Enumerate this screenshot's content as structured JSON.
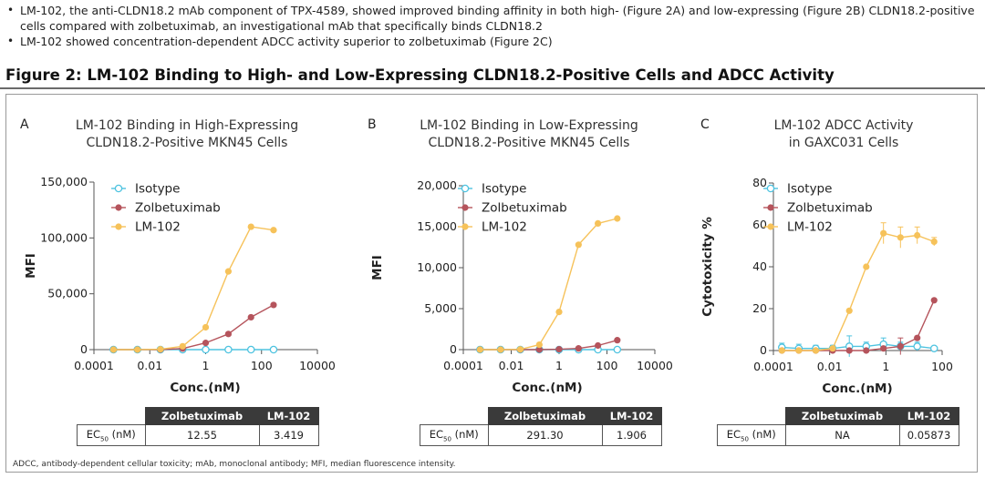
{
  "bullets": [
    "LM-102, the anti-CLDN18.2 mAb component of TPX-4589, showed improved binding affinity in both high- (Figure 2A) and low-expressing (Figure 2B) CLDN18.2-positive cells compared with zolbetuximab, an investigational mAb that specifically binds CLDN18.2",
    "LM-102 showed concentration-dependent ADCC activity superior to zolbetuximab (Figure 2C)"
  ],
  "figure_title": "Figure 2: LM-102 Binding to High- and Low-Expressing CLDN18.2-Positive Cells and ADCC Activity",
  "footnote": "ADCC, antibody-dependent cellular toxicity; mAb, monoclonal antibody; MFI, median fluorescence intensity.",
  "colors": {
    "Isotype": "#4ec3e0",
    "Zolbetuximab": "#b5545c",
    "LM-102": "#f6c25a"
  },
  "panels": [
    {
      "letter": "A",
      "title_line1": "LM-102 Binding in High-Expressing",
      "title_line2": "CLDN18.2-Positive MKN45 Cells",
      "table": {
        "col1": "Zolbetuximab",
        "col2": "LM-102",
        "row_label": "EC",
        "row_sub": "50",
        "row_unit": " (nM)",
        "v1": "12.55",
        "v2": "3.419"
      }
    },
    {
      "letter": "B",
      "title_line1": "LM-102 Binding in Low-Expressing",
      "title_line2": "CLDN18.2-Positive MKN45 Cells",
      "table": {
        "col1": "Zolbetuximab",
        "col2": "LM-102",
        "row_label": "EC",
        "row_sub": "50",
        "row_unit": " (nM)",
        "v1": "291.30",
        "v2": "1.906"
      }
    },
    {
      "letter": "C",
      "title_line1": "LM-102 ADCC Activity",
      "title_line2": "in GAXC031 Cells",
      "table": {
        "col1": "Zolbetuximab",
        "col2": "LM-102",
        "row_label": "EC",
        "row_sub": "50",
        "row_unit": " (nM)",
        "v1": "NA",
        "v2": "0.05873"
      }
    }
  ],
  "chart_data": [
    {
      "type": "scatter",
      "xlabel": "Conc.(nM)",
      "ylabel": "MFI",
      "xscale": "log",
      "xlim": [
        0.0001,
        10000
      ],
      "ylim": [
        0,
        150000
      ],
      "x_ticks": [
        "0.0001",
        "0.01",
        "1",
        "100",
        "10000"
      ],
      "y_ticks": [
        "0",
        "50,000",
        "100,000",
        "150,000"
      ],
      "y_tick_values": [
        0,
        50000,
        100000,
        150000
      ],
      "legend_position": "top-left",
      "series": [
        {
          "name": "Isotype",
          "x": [
            0.0005,
            0.0036,
            0.024,
            0.15,
            1.0,
            6.5,
            42,
            270
          ],
          "y": [
            0,
            0,
            0,
            0,
            0,
            0,
            0,
            0
          ]
        },
        {
          "name": "Zolbetuximab",
          "x": [
            0.0005,
            0.0036,
            0.024,
            0.15,
            1.0,
            6.5,
            42,
            270
          ],
          "y": [
            0,
            0,
            0,
            1000,
            6000,
            14000,
            29000,
            40000
          ]
        },
        {
          "name": "LM-102",
          "x": [
            0.0005,
            0.0036,
            0.024,
            0.15,
            1.0,
            6.5,
            42,
            270
          ],
          "y": [
            0,
            0,
            300,
            3000,
            20000,
            70000,
            110000,
            107000
          ]
        }
      ]
    },
    {
      "type": "scatter",
      "xlabel": "Conc.(nM)",
      "ylabel": "MFI",
      "xscale": "log",
      "xlim": [
        0.0001,
        10000
      ],
      "ylim": [
        0,
        20000
      ],
      "x_ticks": [
        "0.0001",
        "0.01",
        "1",
        "100",
        "10000"
      ],
      "y_ticks": [
        "0",
        "5,000",
        "10,000",
        "15,000",
        "20,000"
      ],
      "y_tick_values": [
        0,
        5000,
        10000,
        15000,
        20000
      ],
      "legend_position": "top-left",
      "series": [
        {
          "name": "Isotype",
          "x": [
            0.0005,
            0.0036,
            0.024,
            0.15,
            1.0,
            6.5,
            42,
            270
          ],
          "y": [
            0,
            0,
            0,
            0,
            0,
            0,
            0,
            0
          ]
        },
        {
          "name": "Zolbetuximab",
          "x": [
            0.0005,
            0.0036,
            0.024,
            0.15,
            1.0,
            6.5,
            42,
            270
          ],
          "y": [
            0,
            0,
            0,
            0,
            50,
            150,
            500,
            1150
          ]
        },
        {
          "name": "LM-102",
          "x": [
            0.0005,
            0.0036,
            0.024,
            0.15,
            1.0,
            6.5,
            42,
            270
          ],
          "y": [
            0,
            0,
            30,
            600,
            4600,
            12800,
            15400,
            16000
          ]
        }
      ]
    },
    {
      "type": "scatter",
      "xlabel": "Conc.(nM)",
      "ylabel": "Cytotoxicity %",
      "xscale": "log",
      "xlim": [
        0.0001,
        100
      ],
      "ylim": [
        0,
        80
      ],
      "x_ticks": [
        "0.0001",
        "0.01",
        "1",
        "100"
      ],
      "y_ticks": [
        "0",
        "20",
        "40",
        "60",
        "80"
      ],
      "y_tick_values": [
        0,
        20,
        40,
        60,
        80
      ],
      "legend_position": "top-left",
      "series": [
        {
          "name": "Isotype",
          "x": [
            0.0002,
            0.0008,
            0.0032,
            0.0128,
            0.05,
            0.2,
            0.82,
            3.3,
            13,
            52
          ],
          "y": [
            1.5,
            1,
            1,
            1,
            2,
            2,
            3,
            2,
            2,
            1
          ],
          "err": [
            2,
            2,
            1.5,
            1.5,
            5,
            2,
            3,
            2,
            2,
            1
          ]
        },
        {
          "name": "Zolbetuximab",
          "x": [
            0.0002,
            0.0008,
            0.0032,
            0.0128,
            0.05,
            0.2,
            0.82,
            3.3,
            13,
            52
          ],
          "y": [
            0,
            0,
            0,
            0,
            0,
            0,
            1,
            2,
            6,
            24
          ],
          "err": [
            0,
            0,
            0,
            0,
            0,
            0,
            0,
            4,
            0,
            0
          ]
        },
        {
          "name": "LM-102",
          "x": [
            0.0002,
            0.0008,
            0.0032,
            0.0128,
            0.05,
            0.2,
            0.82,
            3.3,
            13,
            52
          ],
          "y": [
            0,
            0,
            0,
            1,
            19,
            40,
            56,
            54,
            55,
            52
          ],
          "err": [
            0,
            0,
            0,
            0,
            0,
            0,
            5,
            5,
            4,
            2
          ]
        }
      ]
    }
  ]
}
